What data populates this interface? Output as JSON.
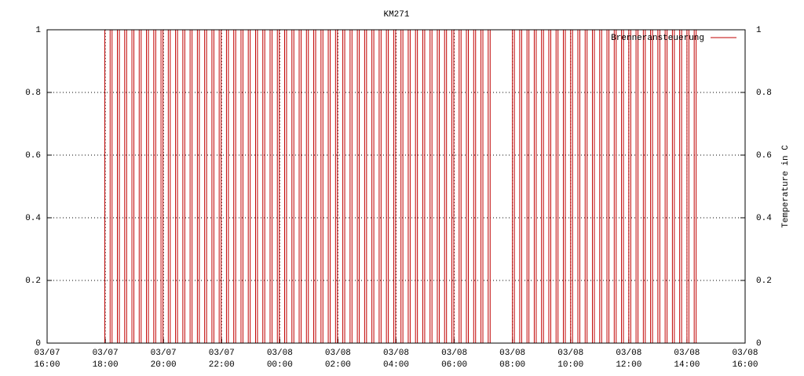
{
  "chart_data": {
    "type": "line",
    "style": "steps",
    "title": "KM271",
    "y2label": "Temperature in C",
    "xlim": [
      "03/07 16:00",
      "03/08 16:00"
    ],
    "xticks": [
      "03/07\n16:00",
      "03/07\n18:00",
      "03/07\n20:00",
      "03/07\n22:00",
      "03/08\n00:00",
      "03/08\n02:00",
      "03/08\n04:00",
      "03/08\n06:00",
      "03/08\n08:00",
      "03/08\n10:00",
      "03/08\n12:00",
      "03/08\n14:00",
      "03/08\n16:00"
    ],
    "ylim": [
      0,
      1
    ],
    "yticks": [
      0,
      0.2,
      0.4,
      0.6,
      0.8,
      1
    ],
    "y2lim": [
      0,
      1
    ],
    "y2ticks": [
      0,
      0.2,
      0.4,
      0.6,
      0.8,
      1
    ],
    "grid": true,
    "legend": "top-right",
    "x": [
      "03/07 17:55",
      "03/07 17:59",
      "03/07 18:10",
      "03/07 18:14",
      "03/07 18:25",
      "03/07 18:29",
      "03/07 18:40",
      "03/07 18:44",
      "03/07 18:55",
      "03/07 18:59",
      "03/07 19:10",
      "03/07 19:14",
      "03/07 19:25",
      "03/07 19:29",
      "03/07 19:40",
      "03/07 19:44",
      "03/07 19:55",
      "03/07 19:59",
      "03/07 20:10",
      "03/07 20:14",
      "03/07 20:25",
      "03/07 20:29",
      "03/07 20:40",
      "03/07 20:44",
      "03/07 20:55",
      "03/07 20:59",
      "03/07 21:10",
      "03/07 21:14",
      "03/07 21:25",
      "03/07 21:29",
      "03/07 21:40",
      "03/07 21:44",
      "03/07 21:55",
      "03/07 21:59",
      "03/07 22:10",
      "03/07 22:14",
      "03/07 22:25",
      "03/07 22:29",
      "03/07 22:40",
      "03/07 22:44",
      "03/07 22:55",
      "03/07 22:59",
      "03/07 23:10",
      "03/07 23:14",
      "03/07 23:25",
      "03/07 23:29",
      "03/07 23:40",
      "03/07 23:44",
      "03/07 23:55",
      "03/07 23:59",
      "03/08 00:10",
      "03/08 00:14",
      "03/08 00:25",
      "03/08 00:29",
      "03/08 00:40",
      "03/08 00:44",
      "03/08 00:55",
      "03/08 00:59",
      "03/08 01:10",
      "03/08 01:14",
      "03/08 01:25",
      "03/08 01:29",
      "03/08 01:40",
      "03/08 01:44",
      "03/08 01:55",
      "03/08 01:59",
      "03/08 02:10",
      "03/08 02:14",
      "03/08 02:25",
      "03/08 02:29",
      "03/08 02:40",
      "03/08 02:44",
      "03/08 02:55",
      "03/08 02:59",
      "03/08 03:10",
      "03/08 03:14",
      "03/08 03:25",
      "03/08 03:29",
      "03/08 03:40",
      "03/08 03:44",
      "03/08 03:55",
      "03/08 03:59",
      "03/08 04:10",
      "03/08 04:14",
      "03/08 04:25",
      "03/08 04:29",
      "03/08 04:40",
      "03/08 04:44",
      "03/08 04:55",
      "03/08 04:59",
      "03/08 05:10",
      "03/08 05:14",
      "03/08 05:25",
      "03/08 05:29",
      "03/08 05:40",
      "03/08 05:44",
      "03/08 05:55",
      "03/08 05:59",
      "03/08 06:10",
      "03/08 06:14",
      "03/08 06:25",
      "03/08 06:29",
      "03/08 06:40",
      "03/08 06:44",
      "03/08 06:55",
      "03/08 06:59",
      "03/08 07:10",
      "03/08 07:14",
      "03/08 08:00",
      "03/08 08:04",
      "03/08 08:15",
      "03/08 08:19",
      "03/08 08:30",
      "03/08 08:34",
      "03/08 08:45",
      "03/08 08:49",
      "03/08 09:00",
      "03/08 09:04",
      "03/08 09:15",
      "03/08 09:19",
      "03/08 09:30",
      "03/08 09:34",
      "03/08 09:45",
      "03/08 09:49",
      "03/08 10:00",
      "03/08 10:04",
      "03/08 10:15",
      "03/08 10:19",
      "03/08 10:30",
      "03/08 10:34",
      "03/08 10:45",
      "03/08 10:49",
      "03/08 11:00",
      "03/08 11:04",
      "03/08 11:15",
      "03/08 11:19",
      "03/08 11:30",
      "03/08 11:34",
      "03/08 11:45",
      "03/08 11:49",
      "03/08 12:00",
      "03/08 12:04",
      "03/08 12:15",
      "03/08 12:19",
      "03/08 12:30",
      "03/08 12:34",
      "03/08 12:45",
      "03/08 12:49",
      "03/08 13:00",
      "03/08 13:04",
      "03/08 13:15",
      "03/08 13:19",
      "03/08 13:30",
      "03/08 13:34",
      "03/08 13:45",
      "03/08 13:49",
      "03/08 14:00",
      "03/08 14:04",
      "03/08 14:15",
      "03/08 14:19"
    ],
    "series": [
      {
        "name": "Brenneransteuerung",
        "color": "#c00000",
        "values": [
          1,
          0,
          1,
          0,
          1,
          0,
          1,
          0,
          1,
          0,
          1,
          0,
          1,
          0,
          1,
          0,
          1,
          0,
          1,
          0,
          1,
          0,
          1,
          0,
          1,
          0,
          1,
          0,
          1,
          0,
          1,
          0,
          1,
          0,
          1,
          0,
          1,
          0,
          1,
          0,
          1,
          0,
          1,
          0,
          1,
          0,
          1,
          0,
          1,
          0,
          1,
          0,
          1,
          0,
          1,
          0,
          1,
          0,
          1,
          0,
          1,
          0,
          1,
          0,
          1,
          0,
          1,
          0,
          1,
          0,
          1,
          0,
          1,
          0,
          1,
          0,
          1,
          0,
          1,
          0,
          1,
          0,
          1,
          0,
          1,
          0,
          1,
          0,
          1,
          0,
          1,
          0,
          1,
          0,
          1,
          0,
          1,
          0,
          1,
          0,
          1,
          0,
          1,
          0,
          1,
          0,
          1,
          0,
          1,
          0,
          1,
          0,
          1,
          0,
          1,
          0,
          1,
          0,
          1,
          0,
          1,
          0,
          1,
          0,
          1,
          0,
          1,
          0,
          1,
          0,
          1,
          0,
          1,
          0,
          1,
          0,
          1,
          0,
          1,
          0,
          1,
          0,
          1,
          0,
          1,
          0,
          1,
          0,
          1,
          0,
          1,
          0,
          1,
          0,
          1,
          0,
          1,
          0,
          1,
          0
        ]
      }
    ]
  }
}
